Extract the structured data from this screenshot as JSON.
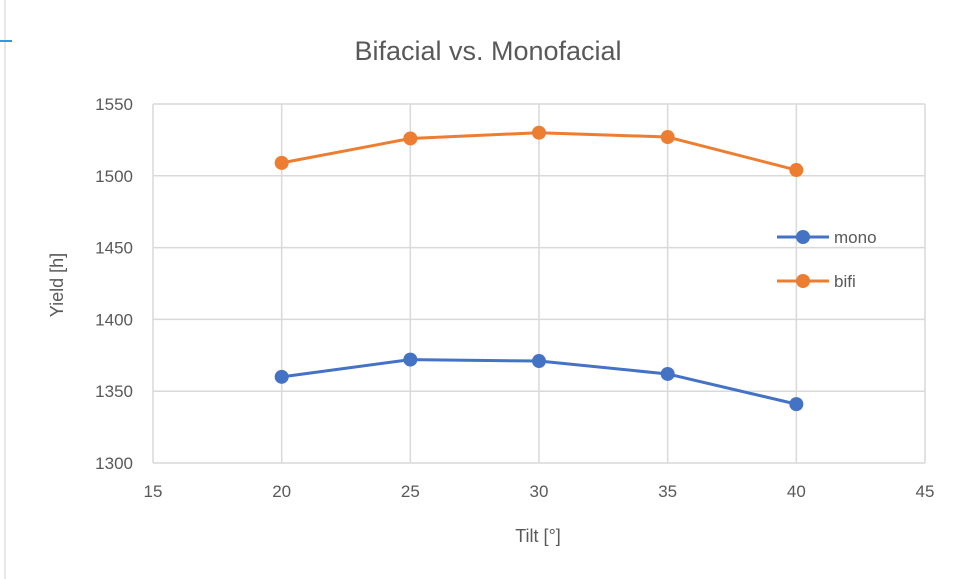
{
  "chart_data": {
    "type": "line",
    "title": "Bifacial vs. Monofacial",
    "xlabel": "Tilt [°]",
    "ylabel": "Yield [h]",
    "xlim": [
      15,
      45
    ],
    "ylim": [
      1300,
      1550
    ],
    "xticks": [
      15,
      20,
      25,
      30,
      35,
      40,
      45
    ],
    "yticks": [
      1300,
      1350,
      1400,
      1450,
      1500,
      1550
    ],
    "grid": true,
    "legend_position": "right",
    "x": [
      20,
      25,
      30,
      35,
      40
    ],
    "series": [
      {
        "name": "mono",
        "color": "#4472C4",
        "values": [
          1360,
          1372,
          1371,
          1362,
          1341
        ]
      },
      {
        "name": "bifi",
        "color": "#ED7D31",
        "values": [
          1509,
          1526,
          1530,
          1527,
          1504
        ]
      }
    ]
  },
  "decor": {
    "accent_color": "#2E9BE0",
    "grid_color": "#D9D9D9",
    "text_color": "#595959"
  }
}
